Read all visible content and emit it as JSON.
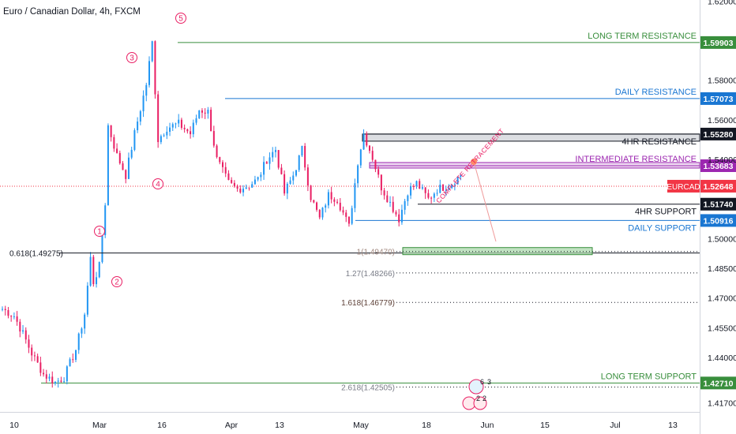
{
  "header": {
    "symbol_title": "Euro / Canadian Dollar, 4h, FXCM"
  },
  "colors": {
    "candle_up": "#2196f3",
    "candle_down": "#e91e63",
    "green_level": "#388e3c",
    "blue_level": "#1976d2",
    "black_level": "#131722",
    "purple_level": "#9c27b0",
    "current_price": "#f23645",
    "fib_text": "#787b86"
  },
  "chart_data": {
    "type": "candlestick",
    "title": "Euro / Canadian Dollar, 4h, FXCM",
    "timeframe": "4h",
    "ylim": [
      1.4125,
      1.6205
    ],
    "price_ticks": [
      "1.62000",
      "1.58000",
      "1.56000",
      "1.54000",
      "1.50000",
      "1.48500",
      "1.47000",
      "1.45500",
      "1.44000",
      "1.41700"
    ],
    "date_ticks": [
      "10",
      "Mar",
      "16",
      "Apr",
      "13",
      "May",
      "18",
      "Jun",
      "15",
      "Jul",
      "13"
    ],
    "current_price": {
      "label": "EURCAD",
      "value": "1.52648"
    },
    "levels": [
      {
        "label": "LONG TERM RESISTANCE",
        "value": "1.59903",
        "kind": "green"
      },
      {
        "label": "DAILY RESISTANCE",
        "value": "1.57073",
        "kind": "blue"
      },
      {
        "label": "4HR RESISTANCE",
        "value": "1.55280",
        "kind": "black"
      },
      {
        "label": "INTERMEDIATE RESISTANCE",
        "value": "1.53683",
        "kind": "purple"
      },
      {
        "label": "4HR SUPPORT",
        "value": "1.51740",
        "kind": "black"
      },
      {
        "label": "DAILY SUPPORT",
        "value": "1.50916",
        "kind": "blue"
      },
      {
        "label": "LONG TERM SUPPORT",
        "value": "1.42710",
        "kind": "green"
      }
    ],
    "fib_levels": [
      {
        "label": "0.618(1.49275)",
        "value": 1.49275
      },
      {
        "label": "1(1.49470)",
        "value": 1.4947
      },
      {
        "label": "1.27(1.48266)",
        "value": 1.48266
      },
      {
        "label": "1.618(1.46779)",
        "value": 1.46779
      },
      {
        "label": "2.618(1.42505)",
        "value": 1.42505
      }
    ],
    "wave_labels": [
      "1",
      "2",
      "3",
      "4",
      "5"
    ],
    "annotation": "COMPLETE RETRACEMENT",
    "event_badges": [
      "6",
      "3",
      "2",
      "2"
    ],
    "swing_points": [
      [
        0,
        1.4645
      ],
      [
        4,
        1.461
      ],
      [
        7,
        1.452
      ],
      [
        10,
        1.442
      ],
      [
        14,
        1.4315
      ],
      [
        18,
        1.4275
      ],
      [
        21,
        1.43
      ],
      [
        25,
        1.444
      ],
      [
        28,
        1.462
      ],
      [
        30,
        1.49
      ],
      [
        31,
        1.478
      ],
      [
        33,
        1.486
      ],
      [
        35,
        1.518
      ],
      [
        36,
        1.557
      ],
      [
        39,
        1.542
      ],
      [
        42,
        1.532
      ],
      [
        45,
        1.553
      ],
      [
        49,
        1.578
      ],
      [
        51,
        1.599
      ],
      [
        53,
        1.55
      ],
      [
        56,
        1.556
      ],
      [
        60,
        1.558
      ],
      [
        64,
        1.553
      ],
      [
        67,
        1.565
      ],
      [
        70,
        1.564
      ],
      [
        73,
        1.54
      ],
      [
        77,
        1.528
      ],
      [
        80,
        1.525
      ],
      [
        84,
        1.527
      ],
      [
        87,
        1.53
      ],
      [
        90,
        1.54
      ],
      [
        93,
        1.545
      ],
      [
        96,
        1.523
      ],
      [
        99,
        1.532
      ],
      [
        102,
        1.545
      ],
      [
        105,
        1.521
      ],
      [
        108,
        1.51
      ],
      [
        111,
        1.522
      ],
      [
        114,
        1.52
      ],
      [
        118,
        1.506
      ],
      [
        121,
        1.539
      ],
      [
        123,
        1.553
      ],
      [
        126,
        1.541
      ],
      [
        129,
        1.526
      ],
      [
        132,
        1.518
      ],
      [
        135,
        1.51
      ],
      [
        138,
        1.524
      ],
      [
        141,
        1.528
      ],
      [
        145,
        1.52
      ],
      [
        148,
        1.525
      ],
      [
        152,
        1.527
      ],
      [
        156,
        1.532
      ]
    ]
  }
}
